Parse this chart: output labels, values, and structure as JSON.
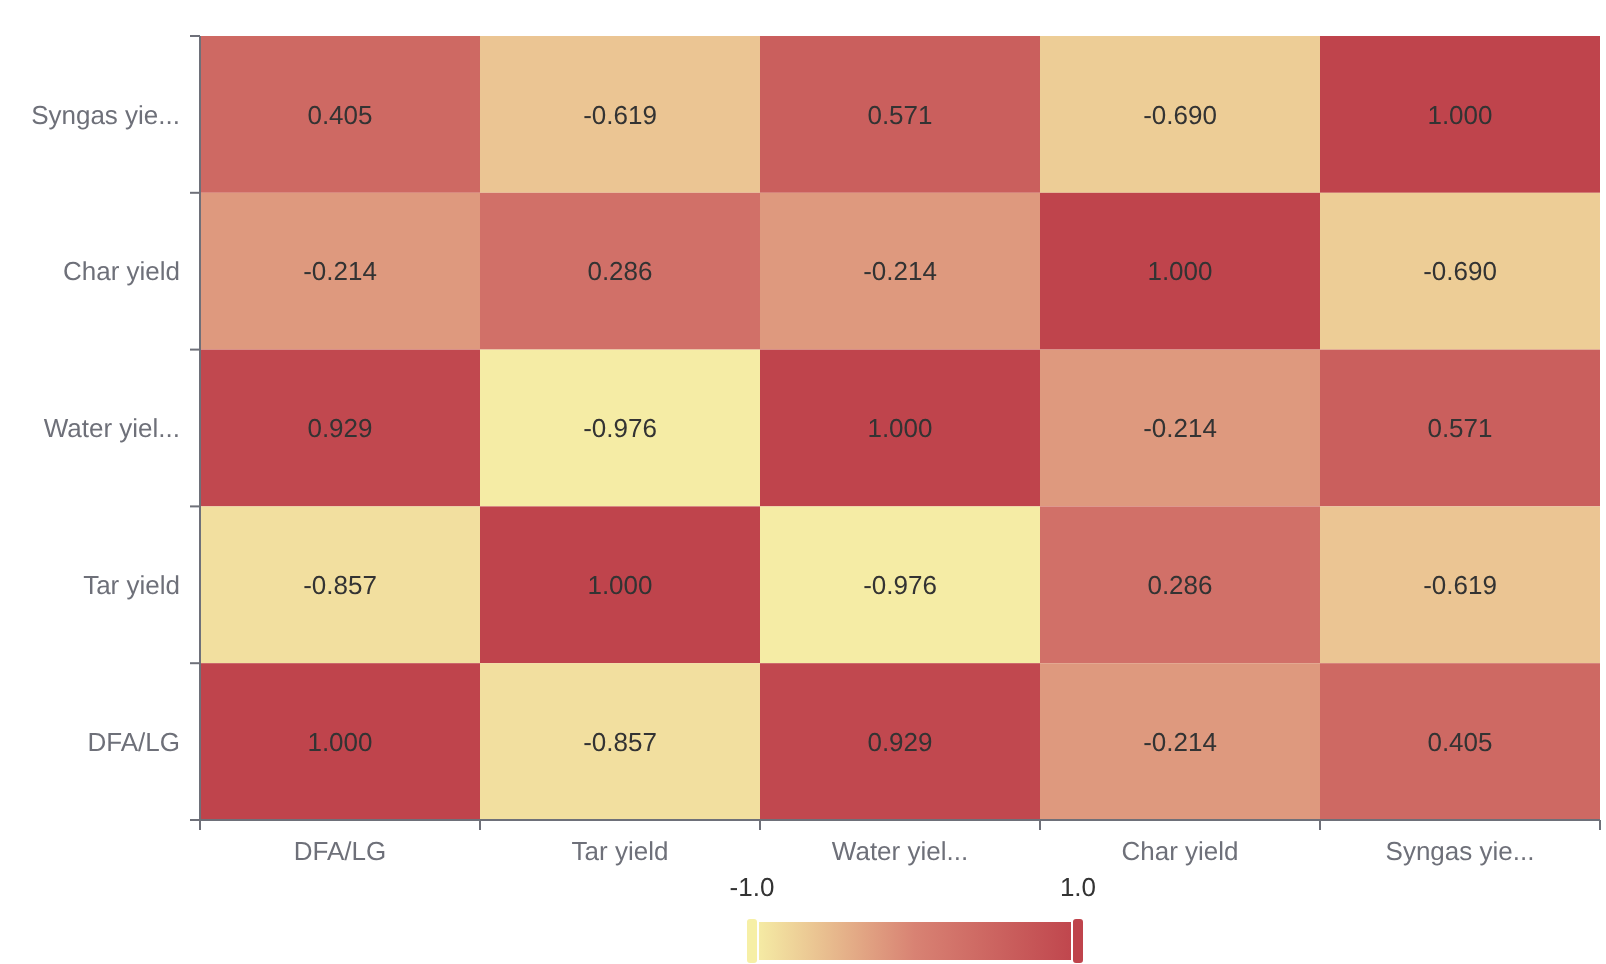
{
  "chart_data": {
    "type": "heatmap",
    "categories": [
      "DFA/LG",
      "Tar yield",
      "Water yiel...",
      "Char yield",
      "Syngas yie..."
    ],
    "y_categories": [
      "Syngas yie...",
      "Char yield",
      "Water yiel...",
      "Tar yield",
      "DFA/LG"
    ],
    "cells": [
      [
        0.405,
        -0.619,
        0.571,
        -0.69,
        1.0
      ],
      [
        -0.214,
        0.286,
        -0.214,
        1.0,
        -0.69
      ],
      [
        0.929,
        -0.976,
        1.0,
        -0.214,
        0.571
      ],
      [
        -0.857,
        1.0,
        -0.976,
        0.286,
        -0.619
      ],
      [
        1.0,
        -0.857,
        0.929,
        -0.214,
        0.405
      ]
    ],
    "cell_labels": [
      [
        "0.405",
        "-0.619",
        "0.571",
        "-0.690",
        "1.000"
      ],
      [
        "-0.214",
        "0.286",
        "-0.214",
        "1.000",
        "-0.690"
      ],
      [
        "0.929",
        "-0.976",
        "1.000",
        "-0.214",
        "0.571"
      ],
      [
        "-0.857",
        "1.000",
        "-0.976",
        "0.286",
        "-0.619"
      ],
      [
        "1.000",
        "-0.857",
        "0.929",
        "-0.214",
        "0.405"
      ]
    ],
    "colors": [
      "#f6efa6",
      "#d88273",
      "#bf444c"
    ],
    "clim": [
      -1,
      1
    ],
    "cticks": [
      {
        "value": -1,
        "label": "-1.0"
      },
      {
        "value": 1,
        "label": "1.0"
      }
    ]
  }
}
